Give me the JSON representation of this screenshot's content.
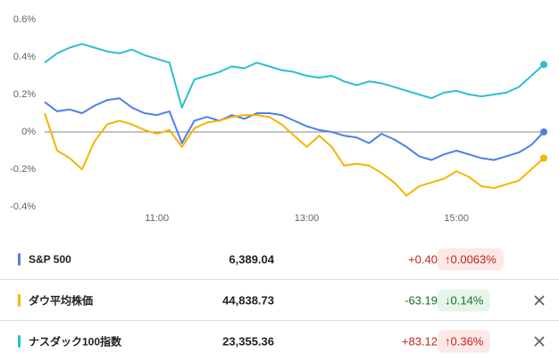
{
  "chart_data": {
    "type": "line",
    "x": [
      570,
      580,
      590,
      600,
      610,
      620,
      630,
      640,
      650,
      660,
      670,
      680,
      690,
      700,
      710,
      720,
      730,
      740,
      750,
      760,
      770,
      780,
      790,
      800,
      810,
      820,
      830,
      840,
      850,
      860,
      870,
      880,
      890,
      900,
      910,
      920,
      930,
      940,
      950,
      960,
      970
    ],
    "xlim": [
      570,
      970
    ],
    "xticks": [
      {
        "value": 660,
        "label": "11:00"
      },
      {
        "value": 780,
        "label": "13:00"
      },
      {
        "value": 900,
        "label": "15:00"
      }
    ],
    "ylim": [
      -0.4,
      0.6
    ],
    "yticks": [
      {
        "value": 0.6,
        "label": "0.6%"
      },
      {
        "value": 0.4,
        "label": "0.4%"
      },
      {
        "value": 0.2,
        "label": "0.2%"
      },
      {
        "value": 0,
        "label": "0%"
      },
      {
        "value": -0.2,
        "label": "-0.2%"
      },
      {
        "value": -0.4,
        "label": "-0.4%"
      }
    ],
    "series": [
      {
        "name": "S&P 500",
        "color": "#4f7fe8",
        "values": [
          0.16,
          0.11,
          0.12,
          0.1,
          0.14,
          0.17,
          0.18,
          0.13,
          0.1,
          0.09,
          0.11,
          -0.06,
          0.06,
          0.08,
          0.06,
          0.09,
          0.07,
          0.1,
          0.1,
          0.09,
          0.06,
          0.03,
          0.01,
          0.0,
          -0.02,
          -0.03,
          -0.06,
          -0.01,
          -0.04,
          -0.08,
          -0.13,
          -0.15,
          -0.12,
          -0.1,
          -0.12,
          -0.14,
          -0.15,
          -0.13,
          -0.11,
          -0.07,
          0.0
        ]
      },
      {
        "name": "ダウ平均株価",
        "color": "#f4b400",
        "values": [
          0.1,
          -0.1,
          -0.14,
          -0.2,
          -0.05,
          0.04,
          0.06,
          0.04,
          0.01,
          -0.01,
          0.01,
          -0.08,
          0.02,
          0.05,
          0.06,
          0.08,
          0.09,
          0.09,
          0.08,
          0.04,
          -0.02,
          -0.08,
          -0.02,
          -0.08,
          -0.18,
          -0.17,
          -0.18,
          -0.22,
          -0.27,
          -0.34,
          -0.29,
          -0.27,
          -0.25,
          -0.21,
          -0.24,
          -0.29,
          -0.3,
          -0.28,
          -0.26,
          -0.2,
          -0.14
        ]
      },
      {
        "name": "ナスダック100指数",
        "color": "#2dbfd0",
        "values": [
          0.37,
          0.42,
          0.45,
          0.47,
          0.45,
          0.43,
          0.42,
          0.44,
          0.41,
          0.39,
          0.37,
          0.13,
          0.28,
          0.3,
          0.32,
          0.35,
          0.34,
          0.37,
          0.35,
          0.33,
          0.32,
          0.3,
          0.29,
          0.3,
          0.27,
          0.25,
          0.27,
          0.26,
          0.24,
          0.22,
          0.2,
          0.18,
          0.21,
          0.22,
          0.2,
          0.19,
          0.2,
          0.21,
          0.24,
          0.3,
          0.36
        ]
      }
    ]
  },
  "table": {
    "rows": [
      {
        "price": "6,389.04",
        "change": "+0.40",
        "change_pct": "↑0.0063%"
      },
      {
        "price": "44,838.73",
        "change": "-63.19",
        "change_pct": "↓0.14%"
      },
      {
        "price": "23,355.36",
        "change": "+83.12",
        "change_pct": "↑0.36%"
      }
    ]
  }
}
